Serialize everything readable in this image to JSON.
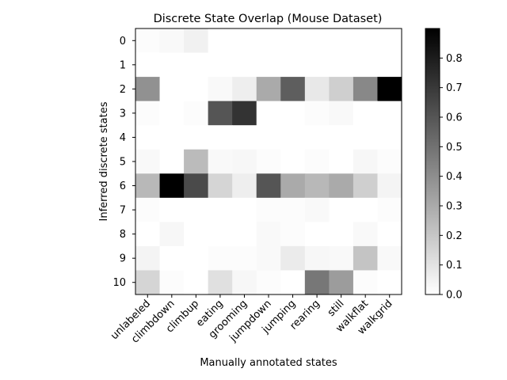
{
  "chart_data": {
    "type": "heatmap",
    "title": "Discrete State Overlap (Mouse Dataset)",
    "xlabel": "Manually annotated states",
    "ylabel": "Inferred discrete states",
    "x_categories": [
      "unlabeled",
      "climbdown",
      "climbup",
      "eating",
      "grooming",
      "jumpdown",
      "jumping",
      "rearing",
      "still",
      "walkflat",
      "walkgrid"
    ],
    "y_categories": [
      "0",
      "1",
      "2",
      "3",
      "4",
      "5",
      "6",
      "7",
      "8",
      "9",
      "10"
    ],
    "colormap": "Greys",
    "vmin": 0.0,
    "vmax": 0.9,
    "colorbar_ticks": [
      "0.0",
      "0.1",
      "0.2",
      "0.3",
      "0.4",
      "0.5",
      "0.6",
      "0.7",
      "0.8"
    ],
    "colorbar_tick_values": [
      0.0,
      0.1,
      0.2,
      0.3,
      0.4,
      0.5,
      0.6,
      0.7,
      0.8
    ],
    "values": [
      [
        0.01,
        0.02,
        0.05,
        0.0,
        0.0,
        0.0,
        0.0,
        0.0,
        0.0,
        0.0,
        0.0
      ],
      [
        0.0,
        0.0,
        0.0,
        0.0,
        0.0,
        0.0,
        0.0,
        0.0,
        0.0,
        0.0,
        0.0
      ],
      [
        0.39,
        0.0,
        0.0,
        0.02,
        0.06,
        0.3,
        0.57,
        0.08,
        0.17,
        0.42,
        0.9
      ],
      [
        0.01,
        0.0,
        0.01,
        0.6,
        0.72,
        0.0,
        0.0,
        0.01,
        0.02,
        0.0,
        0.0
      ],
      [
        0.0,
        0.0,
        0.0,
        0.0,
        0.0,
        0.0,
        0.0,
        0.0,
        0.0,
        0.0,
        0.0
      ],
      [
        0.02,
        0.0,
        0.24,
        0.02,
        0.03,
        0.01,
        0.0,
        0.01,
        0.0,
        0.03,
        0.01
      ],
      [
        0.25,
        0.9,
        0.64,
        0.15,
        0.06,
        0.6,
        0.3,
        0.25,
        0.3,
        0.17,
        0.04
      ],
      [
        0.01,
        0.0,
        0.0,
        0.0,
        0.0,
        0.01,
        0.01,
        0.02,
        0.0,
        0.0,
        0.01
      ],
      [
        0.0,
        0.03,
        0.0,
        0.0,
        0.0,
        0.02,
        0.01,
        0.0,
        0.0,
        0.02,
        0.0
      ],
      [
        0.04,
        0.0,
        0.0,
        0.01,
        0.01,
        0.02,
        0.07,
        0.03,
        0.02,
        0.21,
        0.02
      ],
      [
        0.15,
        0.01,
        0.0,
        0.11,
        0.03,
        0.01,
        0.0,
        0.48,
        0.35,
        0.01,
        0.0
      ]
    ]
  }
}
